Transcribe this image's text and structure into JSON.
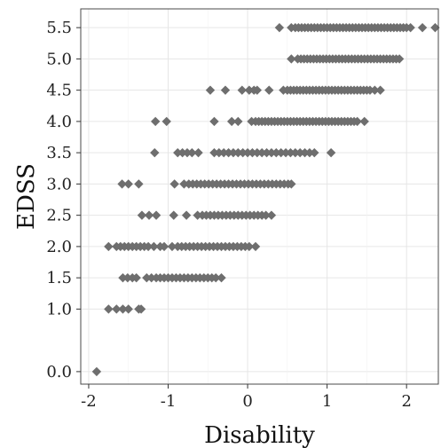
{
  "chart_data": {
    "type": "scatter",
    "xlabel": "Disability",
    "ylabel": "EDSS",
    "xlim": [
      -2.1,
      2.4
    ],
    "ylim": [
      -0.2,
      5.8
    ],
    "x_ticks": [
      -2,
      -1,
      0,
      1,
      2
    ],
    "x_tick_labels": [
      "-2",
      "-1",
      "0",
      "1",
      "2"
    ],
    "y_ticks": [
      0,
      1,
      1.5,
      2,
      2.5,
      3,
      3.5,
      4,
      4.5,
      5,
      5.5
    ],
    "y_tick_labels": [
      "0.0",
      "1.0",
      "1.5",
      "2.0",
      "2.5",
      "3.0",
      "3.5",
      "4.0",
      "4.5",
      "5.0",
      "5.5"
    ],
    "grid": true,
    "marker": "diamond",
    "marker_color": "#6e6e6e",
    "points_by_level": [
      {
        "y": 5.5,
        "x": [
          0.4,
          0.55,
          0.6,
          0.64,
          0.68,
          0.72,
          0.76,
          0.8,
          0.84,
          0.88,
          0.92,
          0.96,
          1.0,
          1.04,
          1.08,
          1.12,
          1.16,
          1.2,
          1.24,
          1.28,
          1.32,
          1.36,
          1.4,
          1.44,
          1.48,
          1.52,
          1.56,
          1.6,
          1.64,
          1.68,
          1.72,
          1.76,
          1.8,
          1.84,
          1.88,
          1.92,
          1.96,
          2.0,
          2.05,
          2.2,
          2.36
        ]
      },
      {
        "y": 5.0,
        "x": [
          0.55,
          0.63,
          0.67,
          0.71,
          0.75,
          0.79,
          0.83,
          0.87,
          0.91,
          0.95,
          0.99,
          1.03,
          1.07,
          1.11,
          1.15,
          1.19,
          1.23,
          1.27,
          1.31,
          1.35,
          1.39,
          1.43,
          1.47,
          1.51,
          1.55,
          1.59,
          1.63,
          1.67,
          1.71,
          1.75,
          1.79,
          1.83,
          1.87,
          1.91
        ]
      },
      {
        "y": 4.5,
        "x": [
          -0.47,
          -0.28,
          -0.07,
          0.02,
          0.08,
          0.12,
          0.27,
          0.45,
          0.5,
          0.54,
          0.58,
          0.62,
          0.66,
          0.7,
          0.74,
          0.78,
          0.82,
          0.86,
          0.9,
          0.94,
          0.98,
          1.02,
          1.06,
          1.1,
          1.14,
          1.18,
          1.22,
          1.26,
          1.3,
          1.34,
          1.38,
          1.42,
          1.46,
          1.5,
          1.54,
          1.6,
          1.67
        ]
      },
      {
        "y": 4.0,
        "x": [
          -1.16,
          -1.02,
          -0.42,
          -0.2,
          -0.12,
          0.05,
          0.1,
          0.14,
          0.18,
          0.22,
          0.26,
          0.3,
          0.34,
          0.38,
          0.42,
          0.46,
          0.5,
          0.54,
          0.58,
          0.62,
          0.66,
          0.7,
          0.74,
          0.78,
          0.82,
          0.86,
          0.9,
          0.94,
          0.98,
          1.02,
          1.06,
          1.1,
          1.14,
          1.18,
          1.22,
          1.26,
          1.3,
          1.34,
          1.38,
          1.47
        ]
      },
      {
        "y": 3.5,
        "x": [
          -1.17,
          -0.88,
          -0.82,
          -0.76,
          -0.7,
          -0.62,
          -0.42,
          -0.36,
          -0.3,
          -0.24,
          -0.18,
          -0.12,
          -0.06,
          0.0,
          0.06,
          0.12,
          0.18,
          0.24,
          0.3,
          0.36,
          0.42,
          0.48,
          0.54,
          0.6,
          0.66,
          0.72,
          0.78,
          0.84,
          1.05
        ]
      },
      {
        "y": 3.0,
        "x": [
          -1.58,
          -1.5,
          -1.37,
          -0.92,
          -0.8,
          -0.74,
          -0.69,
          -0.64,
          -0.59,
          -0.54,
          -0.49,
          -0.44,
          -0.39,
          -0.34,
          -0.29,
          -0.24,
          -0.19,
          -0.14,
          -0.09,
          -0.04,
          0.01,
          0.06,
          0.11,
          0.16,
          0.21,
          0.26,
          0.31,
          0.36,
          0.41,
          0.46,
          0.51,
          0.55
        ]
      },
      {
        "y": 2.5,
        "x": [
          -1.33,
          -1.24,
          -1.15,
          -0.93,
          -0.77,
          -0.63,
          -0.57,
          -0.52,
          -0.47,
          -0.42,
          -0.37,
          -0.32,
          -0.27,
          -0.22,
          -0.17,
          -0.12,
          -0.07,
          -0.02,
          0.03,
          0.08,
          0.13,
          0.18,
          0.23,
          0.3
        ]
      },
      {
        "y": 2.0,
        "x": [
          -1.75,
          -1.65,
          -1.6,
          -1.55,
          -1.5,
          -1.45,
          -1.4,
          -1.35,
          -1.3,
          -1.25,
          -1.18,
          -1.1,
          -1.05,
          -0.95,
          -0.88,
          -0.83,
          -0.78,
          -0.73,
          -0.68,
          -0.63,
          -0.58,
          -0.53,
          -0.48,
          -0.43,
          -0.38,
          -0.33,
          -0.28,
          -0.23,
          -0.18,
          -0.13,
          -0.08,
          -0.03,
          0.02,
          0.1
        ]
      },
      {
        "y": 1.5,
        "x": [
          -1.57,
          -1.51,
          -1.45,
          -1.4,
          -1.27,
          -1.21,
          -1.15,
          -1.1,
          -1.05,
          -1.0,
          -0.95,
          -0.9,
          -0.85,
          -0.8,
          -0.75,
          -0.7,
          -0.65,
          -0.6,
          -0.55,
          -0.5,
          -0.45,
          -0.4,
          -0.33
        ]
      },
      {
        "y": 1.0,
        "x": [
          -1.75,
          -1.65,
          -1.57,
          -1.5,
          -1.37,
          -1.34
        ]
      },
      {
        "y": 0.0,
        "x": [
          -1.9
        ]
      }
    ]
  }
}
